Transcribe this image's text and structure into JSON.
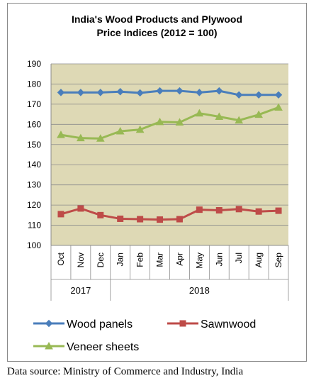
{
  "chart_data": {
    "type": "line",
    "title": "India's Wood Products and Plywood\nPrice Indices  (2012 = 100)",
    "categories": [
      "Oct",
      "Nov",
      "Dec",
      "Jan",
      "Feb",
      "Mar",
      "Apr",
      "May",
      "Jun",
      "Jul",
      "Aug",
      "Sep"
    ],
    "year_groups": [
      {
        "label": "2017",
        "count": 3
      },
      {
        "label": "2018",
        "count": 9
      }
    ],
    "ylim": [
      100,
      190
    ],
    "yticks": [
      100,
      110,
      120,
      130,
      140,
      150,
      160,
      170,
      180,
      190
    ],
    "grid": true,
    "legend_position": "bottom",
    "series": [
      {
        "name": "Wood panels",
        "color": "#4a7ebb",
        "marker": "diamond",
        "values": [
          175.8,
          175.8,
          175.8,
          176.2,
          175.6,
          176.6,
          176.6,
          175.8,
          176.6,
          174.6,
          174.6,
          174.6
        ]
      },
      {
        "name": "Sawnwood",
        "color": "#be4b48",
        "marker": "square",
        "values": [
          115.5,
          118.3,
          115.0,
          113.2,
          113.0,
          112.8,
          113.0,
          117.7,
          117.4,
          118.0,
          116.8,
          117.2
        ]
      },
      {
        "name": "Veneer sheets",
        "color": "#98b954",
        "marker": "triangle",
        "values": [
          154.8,
          153.2,
          153.0,
          156.6,
          157.4,
          161.2,
          161.0,
          165.5,
          163.8,
          162.0,
          164.8,
          168.4
        ]
      }
    ],
    "plot_bg": "#ded9b5"
  },
  "source_note": "Data source: Ministry of Commerce and Industry, India"
}
